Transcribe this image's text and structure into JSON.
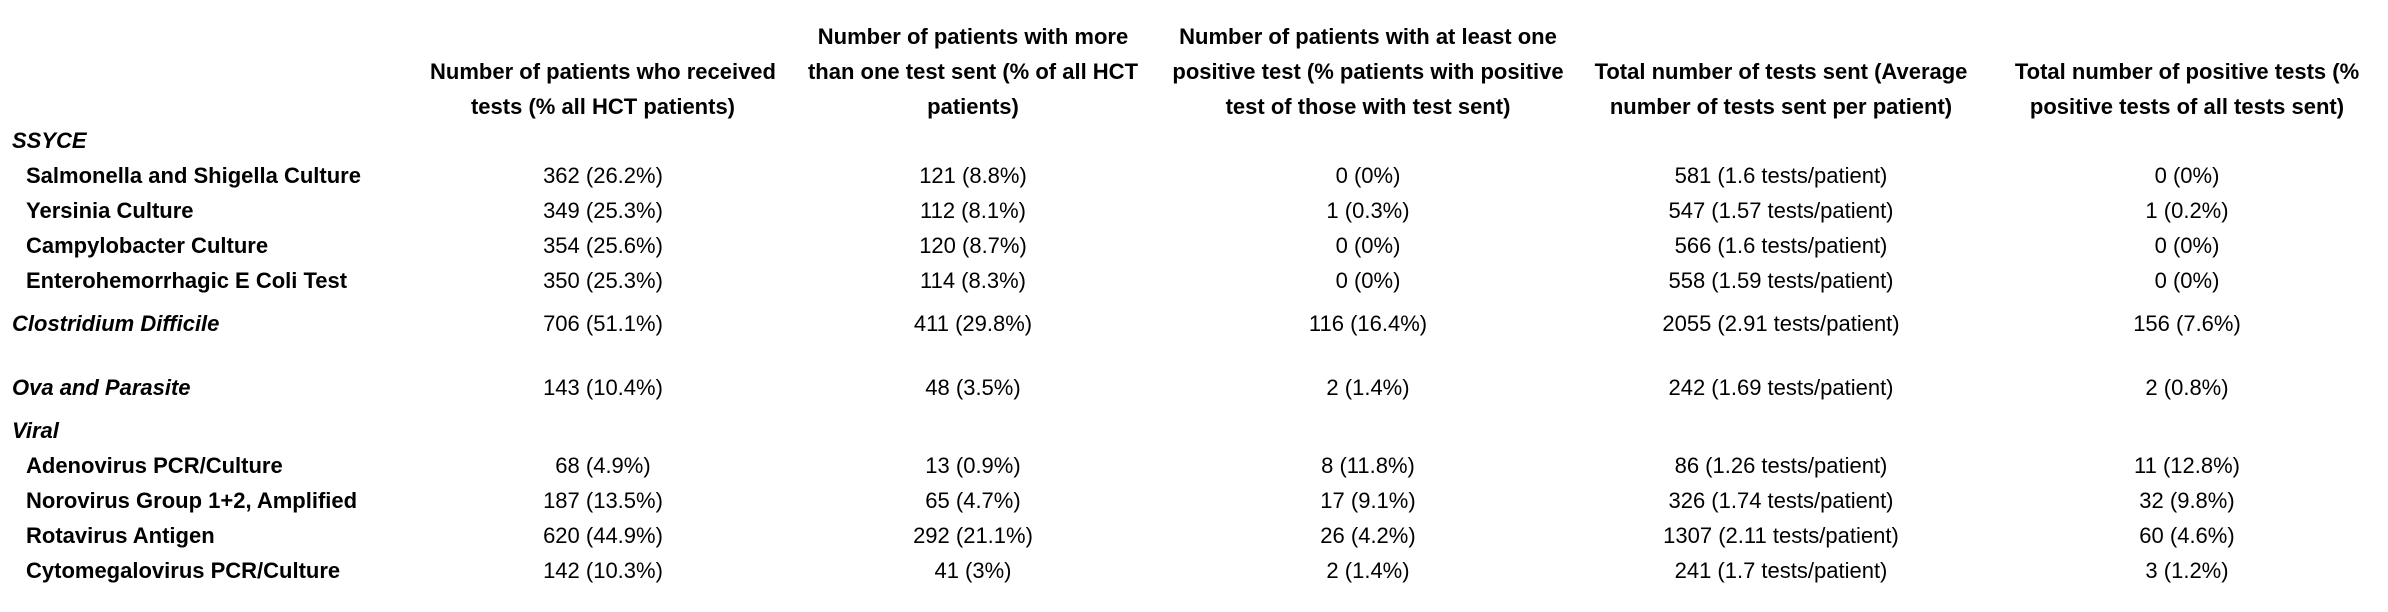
{
  "headers": [
    "",
    "Number of patients who received tests (% all HCT patients)",
    "Number of patients with more than one test sent (% of all HCT patients)",
    "Number of patients with at least one positive test (% patients with positive test of those with test sent)",
    "Total number of tests sent (Average number of tests sent per patient)",
    "Total number of positive tests (% positive tests of all tests sent)"
  ],
  "groups": {
    "ssyce": {
      "label": "SSYCE",
      "rows": [
        [
          "Salmonella and Shigella Culture",
          "362 (26.2%)",
          "121 (8.8%)",
          "0 (0%)",
          "581 (1.6 tests/patient)",
          "0 (0%)"
        ],
        [
          "Yersinia Culture",
          "349 (25.3%)",
          "112 (8.1%)",
          "1 (0.3%)",
          "547 (1.57 tests/patient)",
          "1 (0.2%)"
        ],
        [
          "Campylobacter Culture",
          "354 (25.6%)",
          "120 (8.7%)",
          "0 (0%)",
          "566 (1.6 tests/patient)",
          "0 (0%)"
        ],
        [
          "Enterohemorrhagic E Coli Test",
          "350 (25.3%)",
          "114 (8.3%)",
          "0 (0%)",
          "558 (1.59 tests/patient)",
          "0 (0%)"
        ]
      ]
    },
    "cdiff": {
      "row": [
        "Clostridium Difficile",
        "706 (51.1%)",
        "411 (29.8%)",
        "116 (16.4%)",
        "2055 (2.91 tests/patient)",
        "156 (7.6%)"
      ]
    },
    "ova": {
      "row": [
        "Ova and Parasite",
        "143 (10.4%)",
        "48 (3.5%)",
        "2 (1.4%)",
        "242 (1.69 tests/patient)",
        "2 (0.8%)"
      ]
    },
    "viral": {
      "label": "Viral",
      "rows": [
        [
          "Adenovirus PCR/Culture",
          "68 (4.9%)",
          "13 (0.9%)",
          "8 (11.8%)",
          "86 (1.26 tests/patient)",
          "11 (12.8%)"
        ],
        [
          "Norovirus Group 1+2, Amplified",
          "187 (13.5%)",
          "65 (4.7%)",
          "17 (9.1%)",
          "326 (1.74 tests/patient)",
          "32 (9.8%)"
        ],
        [
          "Rotavirus Antigen",
          "620 (44.9%)",
          "292 (21.1%)",
          "26 (4.2%)",
          "1307 (2.11 tests/patient)",
          "60 (4.6%)"
        ],
        [
          "Cytomegalovirus PCR/Culture",
          "142 (10.3%)",
          "41 (3%)",
          "2 (1.4%)",
          "241 (1.7 tests/patient)",
          "3 (1.2%)"
        ]
      ]
    }
  }
}
